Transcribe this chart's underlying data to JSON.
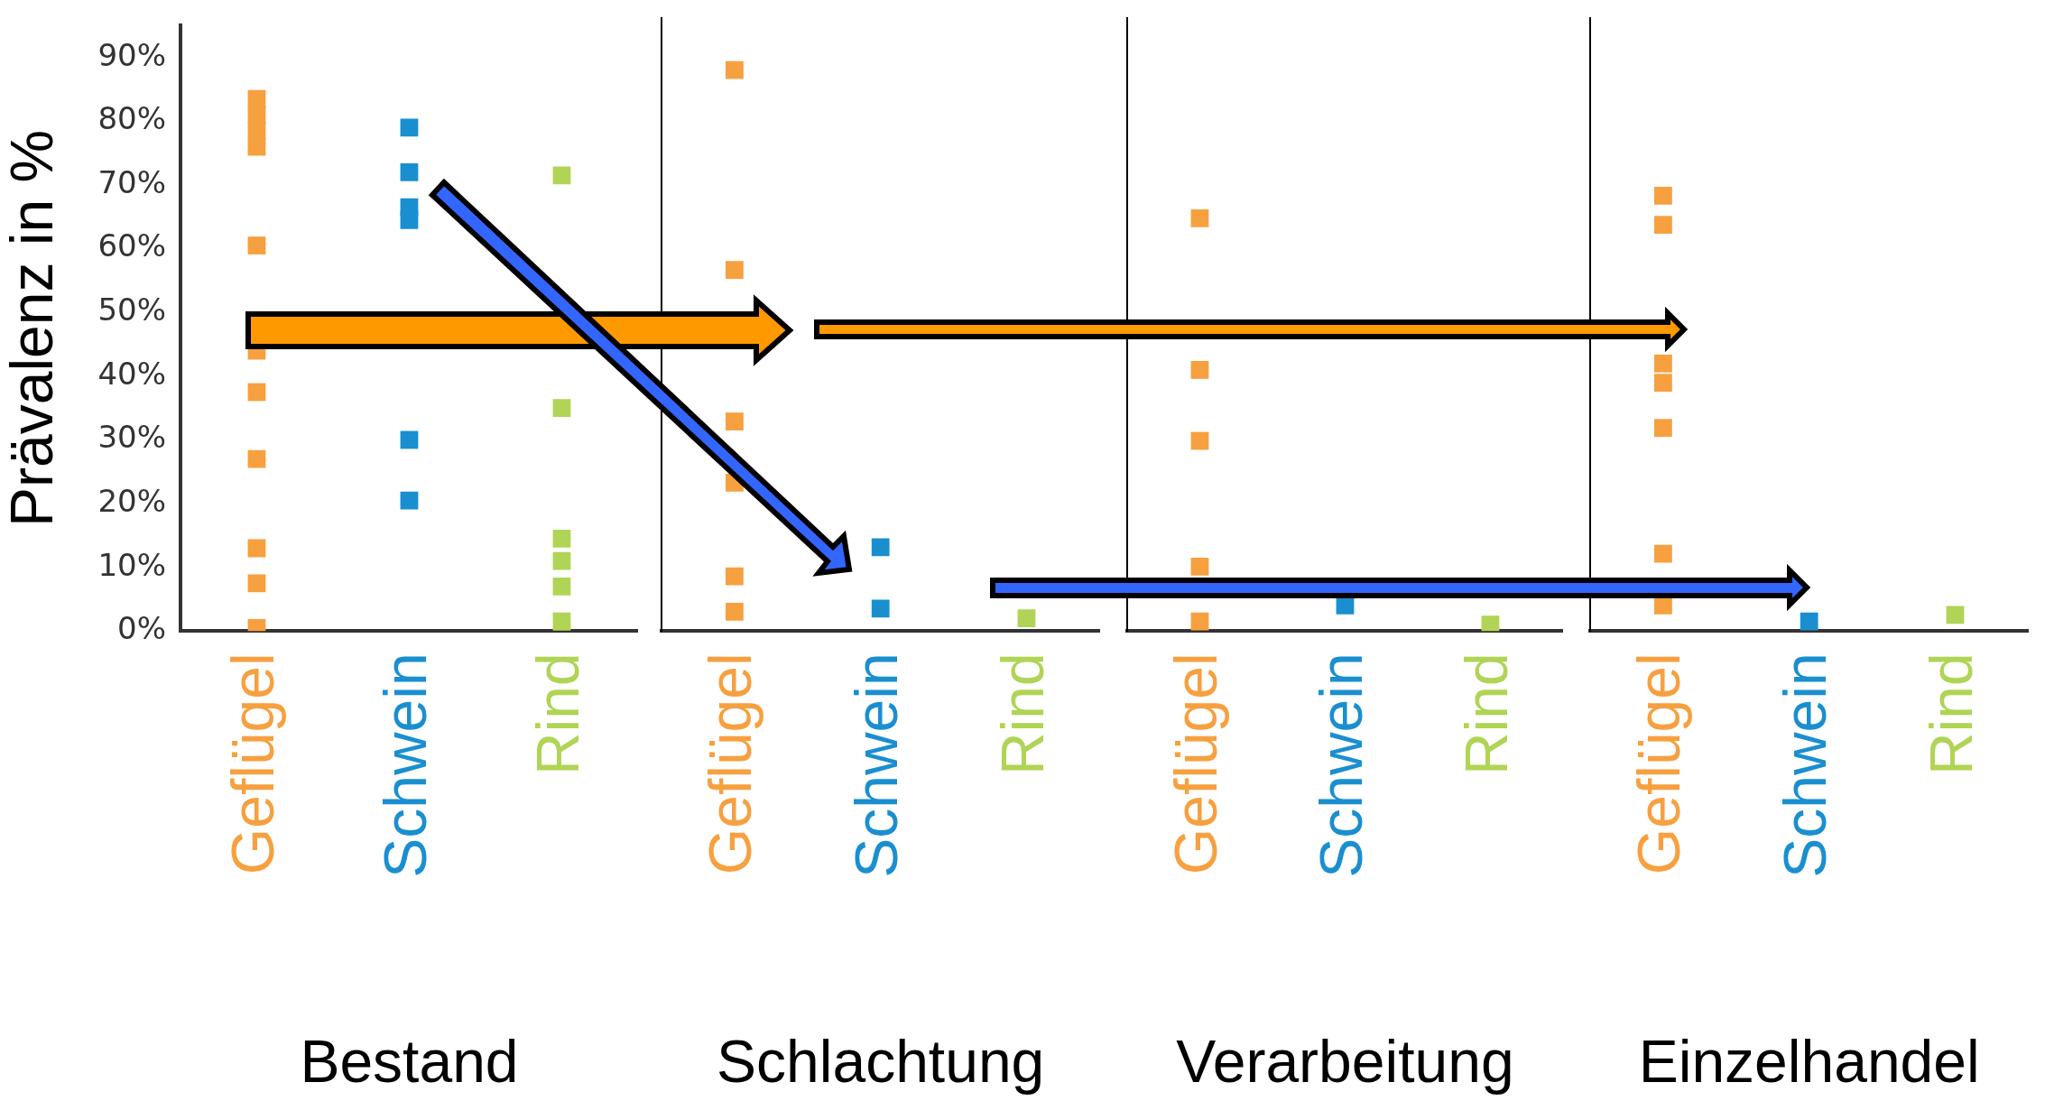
{
  "chart_data": [
    {
      "type": "scatter",
      "xlabel": "Bestand",
      "ylabel": "Prävalenz in %",
      "categories": [
        "Geflügel",
        "Schwein",
        "Rind"
      ],
      "ylim": [
        0,
        95
      ],
      "yticks": [
        {
          "value": 0,
          "label": "0%"
        },
        {
          "value": 10,
          "label": "10%"
        },
        {
          "value": 20,
          "label": "20%"
        },
        {
          "value": 30,
          "label": "30%"
        },
        {
          "value": 40,
          "label": "40%"
        },
        {
          "value": 50,
          "label": "50%"
        },
        {
          "value": 60,
          "label": "60%"
        },
        {
          "value": 70,
          "label": "70%"
        },
        {
          "value": 80,
          "label": "80%"
        },
        {
          "value": 90,
          "label": "90%"
        }
      ],
      "marker": "square",
      "grid": false,
      "series": [
        {
          "color": "#f7a040",
          "x": [
            "Geflügel",
            "Geflügel",
            "Geflügel",
            "Geflügel",
            "Geflügel",
            "Geflügel",
            "Geflügel",
            "Geflügel",
            "Geflügel",
            "Geflügel",
            "Geflügel"
          ],
          "values": [
            83.5,
            81,
            78.5,
            76,
            60.5,
            44,
            37.5,
            27,
            13,
            7.5,
            0.5
          ]
        },
        {
          "color": "#1a8fd0",
          "x": [
            "Schwein",
            "Schwein",
            "Schwein",
            "Schwein",
            "Schwein",
            "Schwein"
          ],
          "values": [
            79,
            72,
            66.5,
            64.5,
            30,
            20.5
          ]
        },
        {
          "color": "#b0d455",
          "x": [
            "Rind",
            "Rind",
            "Rind",
            "Rind",
            "Rind",
            "Rind"
          ],
          "values": [
            71.5,
            35,
            14.5,
            11,
            7,
            1.5
          ]
        }
      ]
    },
    {
      "type": "scatter",
      "xlabel": "Schlachtung",
      "categories": [
        "Geflügel",
        "Schwein",
        "Rind"
      ],
      "ylim": [
        0,
        95
      ],
      "tick_labels": "x",
      "marker": "square",
      "grid": false,
      "series": [
        {
          "color": "#f7a040",
          "x": [
            "Geflügel",
            "Geflügel",
            "Geflügel",
            "Geflügel",
            "Geflügel",
            "Geflügel"
          ],
          "values": [
            87,
            56,
            32.5,
            23,
            8.5,
            3
          ]
        },
        {
          "color": "#1a8fd0",
          "x": [
            "Schwein",
            "Schwein"
          ],
          "values": [
            13,
            3.5
          ]
        },
        {
          "color": "#b0d455",
          "x": [
            "Rind"
          ],
          "values": [
            2
          ]
        }
      ]
    },
    {
      "type": "scatter",
      "xlabel": "Verarbeitung",
      "categories": [
        "Geflügel",
        "Schwein",
        "Rind"
      ],
      "ylim": [
        0,
        95
      ],
      "tick_labels": "x",
      "marker": "square",
      "grid": false,
      "series": [
        {
          "color": "#f7a040",
          "x": [
            "Geflügel",
            "Geflügel",
            "Geflügel",
            "Geflügel",
            "Geflügel"
          ],
          "values": [
            64,
            40.5,
            29.5,
            10,
            1.5
          ]
        },
        {
          "color": "#1a8fd0",
          "x": [
            "Schwein"
          ],
          "values": [
            4
          ]
        },
        {
          "color": "#b0d455",
          "x": [
            "Rind"
          ],
          "values": [
            1
          ]
        }
      ]
    },
    {
      "type": "scatter",
      "xlabel": "Einzelhandel",
      "categories": [
        "Geflügel",
        "Schwein",
        "Rind"
      ],
      "ylim": [
        0,
        95
      ],
      "tick_labels": "x",
      "marker": "square",
      "grid": false,
      "series": [
        {
          "color": "#f7a040",
          "x": [
            "Geflügel",
            "Geflügel",
            "Geflügel",
            "Geflügel",
            "Geflügel",
            "Geflügel",
            "Geflügel"
          ],
          "values": [
            67.5,
            63,
            41.5,
            38.5,
            31.5,
            12,
            4
          ]
        },
        {
          "color": "#1a8fd0",
          "x": [
            "Schwein"
          ],
          "values": [
            1.5
          ]
        },
        {
          "color": "#b0d455",
          "x": [
            "Rind"
          ],
          "values": [
            2.5
          ]
        }
      ]
    }
  ]
}
